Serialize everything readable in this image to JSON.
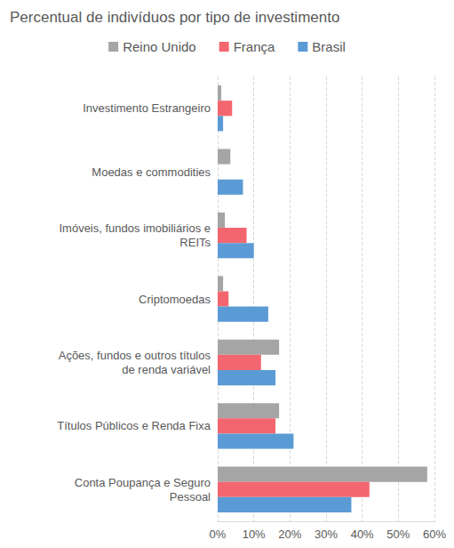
{
  "chart_data": {
    "type": "bar",
    "orientation": "horizontal",
    "title": "Percentual de indivíduos por tipo de investimento",
    "categories": [
      "Investimento Estrangeiro",
      "Moedas e commodities",
      "Imóveis, fundos imobiliários e\nREITs",
      "Criptomoedas",
      "Ações, fundos e outros títulos\nde renda variável",
      "Títulos Públicos e Renda Fixa",
      "Conta Poupança e Seguro\nPessoal"
    ],
    "series": [
      {
        "name": "Reino Unido",
        "color": "#a5a5a5",
        "values": [
          1,
          3.5,
          2,
          1.5,
          17,
          17,
          58
        ]
      },
      {
        "name": "França",
        "color": "#f4666f",
        "values": [
          4,
          null,
          8,
          3,
          12,
          16,
          42
        ]
      },
      {
        "name": "Brasil",
        "color": "#5b9bd5",
        "values": [
          1.5,
          7,
          10,
          14,
          16,
          21,
          37
        ]
      }
    ],
    "xlim": [
      0,
      60
    ],
    "xticks": [
      {
        "value": 0,
        "label": "0%"
      },
      {
        "value": 10,
        "label": "10%"
      },
      {
        "value": 20,
        "label": "20%"
      },
      {
        "value": 30,
        "label": "30%"
      },
      {
        "value": 40,
        "label": "40%"
      },
      {
        "value": 50,
        "label": "50%"
      },
      {
        "value": 60,
        "label": "60%"
      }
    ],
    "grid": true,
    "legend": "top"
  }
}
